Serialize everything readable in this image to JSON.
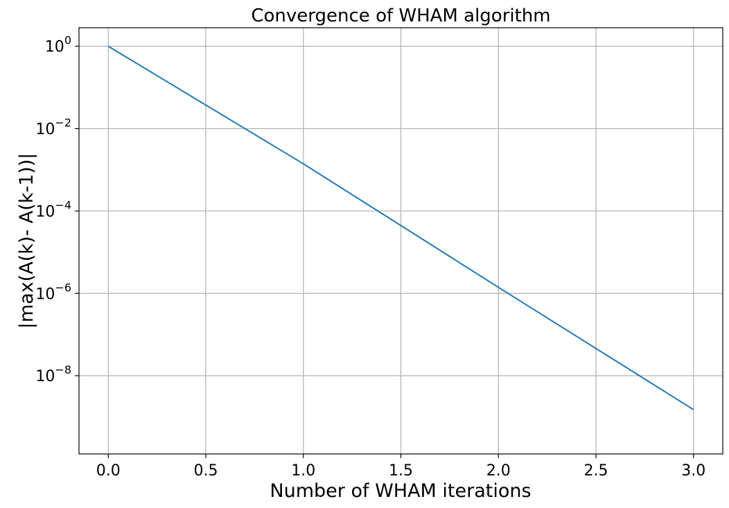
{
  "chart_data": {
    "type": "line",
    "title": "Convergence of WHAM algorithm",
    "xlabel": "Number of WHAM iterations",
    "ylabel": "|max(A(k)- A(k-1))|",
    "yscale": "log",
    "grid": true,
    "xlim": [
      -0.15,
      3.15
    ],
    "ylim_log10": [
      -9.9,
      0.45
    ],
    "xticks": [
      {
        "value": 0.0,
        "label": "0.0"
      },
      {
        "value": 0.5,
        "label": "0.5"
      },
      {
        "value": 1.0,
        "label": "1.0"
      },
      {
        "value": 1.5,
        "label": "1.5"
      },
      {
        "value": 2.0,
        "label": "2.0"
      },
      {
        "value": 2.5,
        "label": "2.5"
      },
      {
        "value": 3.0,
        "label": "3.0"
      }
    ],
    "yticks": [
      {
        "value": 1,
        "base": "10",
        "exp": "0"
      },
      {
        "value": 0.01,
        "base": "10",
        "exp": "−2"
      },
      {
        "value": 0.0001,
        "base": "10",
        "exp": "−4"
      },
      {
        "value": 1e-06,
        "base": "10",
        "exp": "−6"
      },
      {
        "value": 1e-08,
        "base": "10",
        "exp": "−8"
      }
    ],
    "series": [
      {
        "color": "#1f77b4",
        "x": [
          0,
          1,
          2,
          3
        ],
        "y": [
          1.0,
          0.0014,
          1.4e-06,
          1.5e-09
        ]
      }
    ]
  }
}
